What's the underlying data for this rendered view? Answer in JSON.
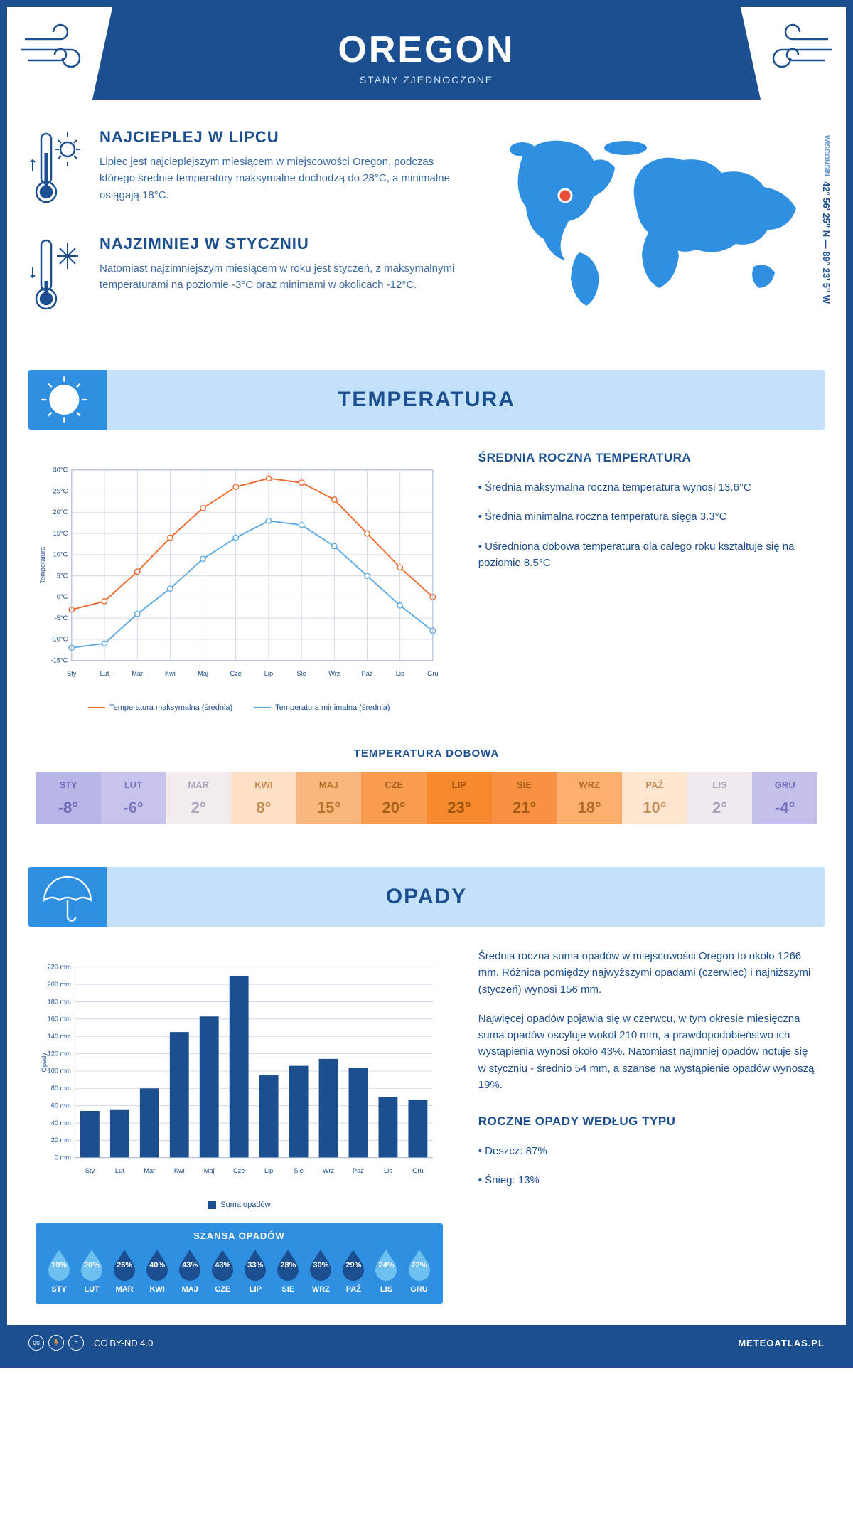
{
  "header": {
    "title": "OREGON",
    "subtitle": "STANY ZJEDNOCZONE"
  },
  "coords": {
    "text": "42° 56' 25'' N — 89° 23' 5'' W",
    "region": "WISCONSIN"
  },
  "intro": {
    "hot": {
      "title": "NAJCIEPLEJ W LIPCU",
      "text": "Lipiec jest najcieplejszym miesiącem w miejscowości Oregon, podczas którego średnie temperatury maksymalne dochodzą do 28°C, a minimalne osiągają 18°C."
    },
    "cold": {
      "title": "NAJZIMNIEJ W STYCZNIU",
      "text": "Natomiast najzimniejszym miesiącem w roku jest styczeń, z maksymalnymi temperaturami na poziomie -3°C oraz minimami w okolicach -12°C."
    }
  },
  "sections": {
    "temperature": {
      "title": "TEMPERATURA",
      "side_title": "ŚREDNIA ROCZNA TEMPERATURA",
      "bullets": [
        "• Średnia maksymalna roczna temperatura wynosi 13.6°C",
        "• Średnia minimalna roczna temperatura sięga 3.3°C",
        "• Uśredniona dobowa temperatura dla całego roku kształtuje się na poziomie 8.5°C"
      ]
    },
    "precipitation": {
      "title": "OPADY",
      "paragraphs": [
        "Średnia roczna suma opadów w miejscowości Oregon to około 1266 mm. Różnica pomiędzy najwyższymi opadami (czerwiec) i najniższymi (styczeń) wynosi 156 mm.",
        "Najwięcej opadów pojawia się w czerwcu, w tym okresie miesięczna suma opadów oscyluje wokół 210 mm, a prawdopodobieństwo ich wystąpienia wynosi około 43%. Natomiast najmniej opadów notuje się w styczniu - średnio 54 mm, a szanse na wystąpienie opadów wynoszą 19%."
      ],
      "type_title": "ROCZNE OPADY WEDŁUG TYPU",
      "type_bullets": [
        "• Deszcz: 87%",
        "• Śnieg: 13%"
      ]
    }
  },
  "months": [
    "Sty",
    "Lut",
    "Mar",
    "Kwi",
    "Maj",
    "Cze",
    "Lip",
    "Sie",
    "Wrz",
    "Paź",
    "Lis",
    "Gru"
  ],
  "months_upper": [
    "STY",
    "LUT",
    "MAR",
    "KWI",
    "MAJ",
    "CZE",
    "LIP",
    "SIE",
    "WRZ",
    "PAŹ",
    "LIS",
    "GRU"
  ],
  "temp_chart": {
    "type": "line",
    "y_title": "Temperatura",
    "ylim": [
      -15,
      30
    ],
    "ytick_step": 5,
    "ytick_suffix": "°C",
    "series": [
      {
        "name": "Temperatura maksymalna (średnia)",
        "color": "#f0692b",
        "values": [
          -3,
          -1,
          6,
          14,
          21,
          26,
          28,
          27,
          23,
          15,
          7,
          0
        ]
      },
      {
        "name": "Temperatura minimalna (średnia)",
        "color": "#5aa9e6",
        "values": [
          -12,
          -11,
          -4,
          2,
          9,
          14,
          18,
          17,
          12,
          5,
          -2,
          -8
        ]
      }
    ],
    "grid_color": "#d0d8e8",
    "background": "#ffffff",
    "line_width": 2,
    "marker": "circle",
    "marker_size": 4
  },
  "daily_temp": {
    "title": "TEMPERATURA DOBOWA",
    "values": [
      -8,
      -6,
      2,
      8,
      15,
      20,
      23,
      21,
      18,
      10,
      2,
      -4
    ],
    "cell_colors": [
      "#b8b6e6",
      "#c7c4ec",
      "#f2ecef",
      "#fde0c5",
      "#fbb67b",
      "#f89c4f",
      "#f6892e",
      "#f89242",
      "#fbb06d",
      "#fde5cf",
      "#f0eaf0",
      "#c3c0ea"
    ],
    "text_colors": [
      "#6a67b4",
      "#7a77c2",
      "#b0a3bc",
      "#c88d56",
      "#b8742f",
      "#a85f1c",
      "#9c540f",
      "#a45a16",
      "#b16d28",
      "#c4905c",
      "#ada1b8",
      "#7673bf"
    ]
  },
  "precip_chart": {
    "type": "bar",
    "y_title": "Opady",
    "ylim": [
      0,
      220
    ],
    "ytick_step": 20,
    "ytick_suffix": " mm",
    "values": [
      54,
      55,
      80,
      145,
      163,
      210,
      95,
      106,
      114,
      104,
      70,
      67
    ],
    "bar_color": "#1b4f8f",
    "legend": "Suma opadów",
    "grid_color": "#d0d8e8"
  },
  "precip_chance": {
    "title": "SZANSA OPADÓW",
    "values": [
      19,
      20,
      26,
      40,
      43,
      43,
      33,
      28,
      30,
      29,
      24,
      22
    ],
    "light_color": "#6dc0f0",
    "dark_color": "#1b4f8f",
    "dark_threshold": 25
  },
  "footer": {
    "license": "CC BY-ND 4.0",
    "site": "METEOATLAS.PL"
  },
  "colors": {
    "primary": "#1b4f8f",
    "light_blue": "#c3e1fa",
    "mid_blue": "#2f8fe0",
    "map_fill": "#2f8fe0",
    "marker": "#e94f37"
  }
}
